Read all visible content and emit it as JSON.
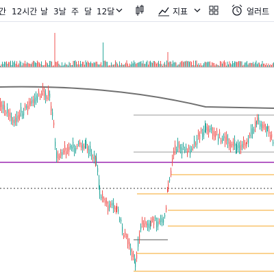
{
  "toolbar": {
    "intervals": [
      "간",
      "12시간",
      "날",
      "3날",
      "주",
      "달",
      "12달"
    ],
    "indicators": "지표",
    "alerts": "얼러트"
  }
}
